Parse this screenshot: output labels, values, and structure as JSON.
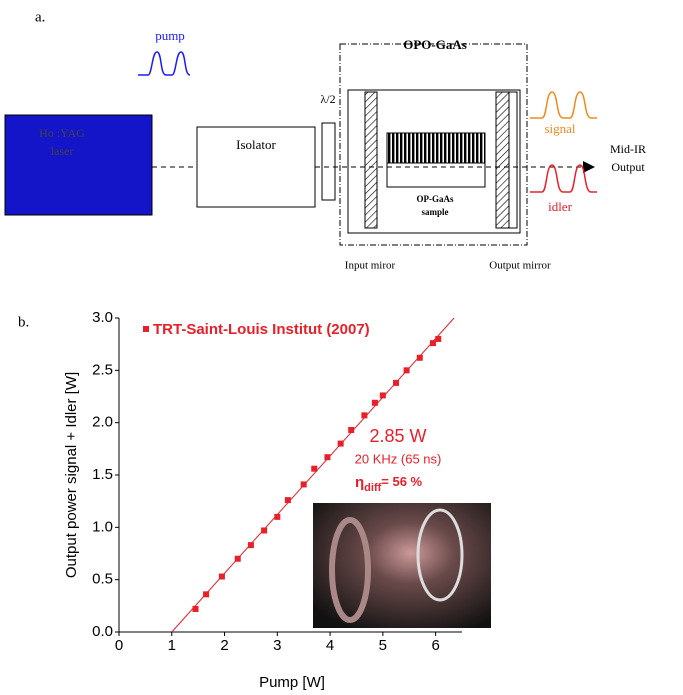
{
  "diagram": {
    "panel_label": "a.",
    "pump": "pump",
    "opo_title": "OPO-GaAs",
    "laser": [
      "Ho :YAG",
      "laser"
    ],
    "isolator": "Isolator",
    "waveplate": "λ/2",
    "signal": "signal",
    "idler": "idler",
    "output": [
      "Mid-IR",
      "Output"
    ],
    "sample": [
      "OP-GaAs",
      "sample"
    ],
    "input_mirror": "Input miror",
    "output_mirror": "Output mirror"
  },
  "chart_data": {
    "type": "scatter",
    "panel_label": "b.",
    "xlabel": "Pump [W]",
    "ylabel": "Output power signal + Idler [W]",
    "xlim": [
      0,
      6.5
    ],
    "ylim": [
      0,
      3.0
    ],
    "xticks": [
      0,
      1,
      2,
      3,
      4,
      5,
      6
    ],
    "yticks": [
      {
        "value": 0,
        "label": "0.0"
      },
      0.5,
      {
        "value": 1,
        "label": "1.0"
      },
      1.5,
      {
        "value": 2,
        "label": "2.0"
      },
      2.5,
      {
        "value": 3,
        "label": "3.0"
      }
    ],
    "series": [
      {
        "name": "TRT-Saint-Louis Institut (2007)",
        "color": "#e8202a",
        "x": [
          1.45,
          1.65,
          1.95,
          2.25,
          2.5,
          2.75,
          3.0,
          3.2,
          3.5,
          3.7,
          3.95,
          4.2,
          4.4,
          4.65,
          4.85,
          5.0,
          5.25,
          5.45,
          5.7,
          5.95,
          6.05
        ],
        "values": [
          0.22,
          0.36,
          0.53,
          0.7,
          0.83,
          0.97,
          1.1,
          1.26,
          1.41,
          1.56,
          1.67,
          1.8,
          1.93,
          2.07,
          2.19,
          2.26,
          2.38,
          2.5,
          2.62,
          2.76,
          2.8
        ]
      }
    ],
    "fit": {
      "color": "#e8202a",
      "x": [
        1,
        6.35
      ],
      "values": [
        0,
        3.0
      ]
    },
    "annotations": [
      "2.85 W",
      "20 KHz (65 ns)"
    ],
    "efficiency": {
      "symbol": "η",
      "subscript": "diff",
      "text": "= 56 %"
    }
  }
}
